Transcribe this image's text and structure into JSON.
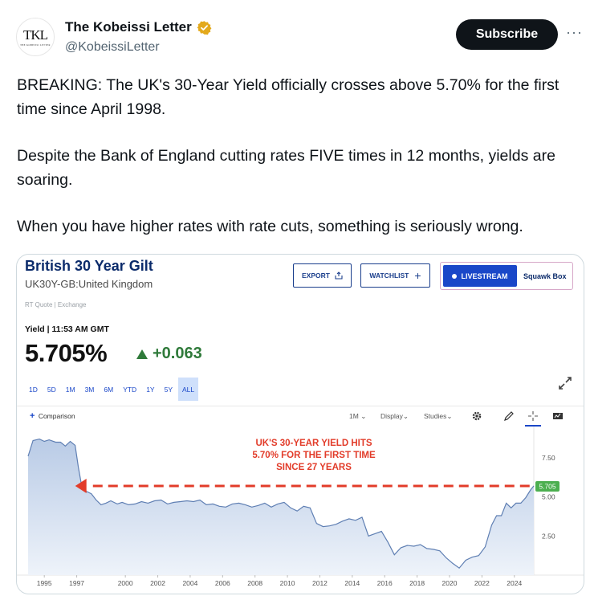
{
  "tweet": {
    "avatar_text": "TKL",
    "avatar_subtext": "THE KOBEISSI LETTER",
    "display_name": "The Kobeissi Letter",
    "handle": "@KobeissiLetter",
    "subscribe_label": "Subscribe",
    "more_label": "···",
    "text_1": "BREAKING: The UK's 30-Year Yield officially crosses above 5.70% for the first time since April 1998.",
    "text_2": "Despite the Bank of England cutting rates FIVE times in 12 months, yields are soaring.",
    "text_3": "When you have higher rates with rate cuts, something is seriously wrong."
  },
  "quote": {
    "title": "British 30 Year Gilt",
    "subtitle": "UK30Y-GB:United Kingdom",
    "rt_quote": "RT Quote | Exchange",
    "export_label": "EXPORT",
    "watchlist_label": "WATCHLIST",
    "livestream_label": "LIVESTREAM",
    "squawk_label": "Squawk Box",
    "yield_label": "Yield | 11:53 AM GMT",
    "price": "5.705%",
    "change": "+0.063",
    "ranges": [
      "1D",
      "5D",
      "1M",
      "3M",
      "6M",
      "YTD",
      "1Y",
      "5Y",
      "ALL"
    ],
    "active_range": "ALL",
    "comparison_label": "Comparison",
    "interval_label": "1M",
    "display_label": "Display",
    "studies_label": "Studies",
    "colors": {
      "brand_navy": "#0b2b6b",
      "accent_blue": "#1a47c8",
      "positive_green": "#2f7a3a",
      "annotation_red": "#e23c2a",
      "last_price_green": "#4caf50"
    }
  },
  "chart_data": {
    "type": "area",
    "x_ticks": [
      "1995",
      "1997",
      "2000",
      "2002",
      "2004",
      "2006",
      "2008",
      "2010",
      "2012",
      "2014",
      "2016",
      "2018",
      "2020",
      "2022",
      "2024"
    ],
    "y_ticks": [
      "7.50",
      "5.00",
      "2.50"
    ],
    "ylim": [
      0,
      9.5
    ],
    "xlim": [
      1994.0,
      2025.2
    ],
    "last_value_label": "5.705",
    "annotation": [
      "UK'S 30-YEAR YIELD HITS",
      "5.70% FOR THE FIRST TIME",
      "SINCE 27 YEARS"
    ],
    "reference_level": 5.7,
    "series": [
      {
        "x": [
          1994.0,
          1994.3,
          1994.7,
          1995.0,
          1995.3,
          1995.7,
          1996.0,
          1996.3,
          1996.6,
          1996.9,
          1997.1,
          1997.3,
          1997.6,
          1997.9,
          1998.2,
          1998.5,
          1998.8,
          1999.1,
          1999.5,
          1999.8,
          2000.2,
          2000.6,
          2001.0,
          2001.4,
          2001.8,
          2002.2,
          2002.6,
          2003.0,
          2003.4,
          2003.8,
          2004.2,
          2004.6,
          2005.0,
          2005.4,
          2005.8,
          2006.2,
          2006.6,
          2007.0,
          2007.4,
          2007.8,
          2008.2,
          2008.6,
          2009.0,
          2009.4,
          2009.8,
          2010.2,
          2010.6,
          2011.0,
          2011.4,
          2011.8,
          2012.2,
          2012.6,
          2013.0,
          2013.4,
          2013.8,
          2014.2,
          2014.6,
          2015.0,
          2015.4,
          2015.8,
          2016.2,
          2016.6,
          2017.0,
          2017.4,
          2017.8,
          2018.2,
          2018.6,
          2019.0,
          2019.4,
          2019.8,
          2020.2,
          2020.6,
          2021.0,
          2021.4,
          2021.8,
          2022.2,
          2022.6,
          2022.9,
          2023.2,
          2023.5,
          2023.8,
          2024.1,
          2024.4,
          2024.7,
          2025.0,
          2025.2
        ],
        "values": [
          7.6,
          8.6,
          8.7,
          8.55,
          8.65,
          8.5,
          8.5,
          8.25,
          8.55,
          8.3,
          6.9,
          5.75,
          5.35,
          5.2,
          4.8,
          4.5,
          4.6,
          4.75,
          4.55,
          4.65,
          4.5,
          4.55,
          4.7,
          4.6,
          4.75,
          4.8,
          4.55,
          4.65,
          4.7,
          4.75,
          4.7,
          4.8,
          4.5,
          4.55,
          4.4,
          4.35,
          4.55,
          4.6,
          4.5,
          4.35,
          4.45,
          4.6,
          4.35,
          4.55,
          4.65,
          4.3,
          4.1,
          4.4,
          4.3,
          3.3,
          3.1,
          3.15,
          3.25,
          3.45,
          3.6,
          3.5,
          3.7,
          2.5,
          2.65,
          2.8,
          2.1,
          1.3,
          1.75,
          1.9,
          1.85,
          1.95,
          1.7,
          1.65,
          1.55,
          1.1,
          0.75,
          0.45,
          0.95,
          1.15,
          1.25,
          1.8,
          3.2,
          3.8,
          3.8,
          4.6,
          4.3,
          4.6,
          4.6,
          4.95,
          5.45,
          5.705
        ]
      }
    ]
  }
}
